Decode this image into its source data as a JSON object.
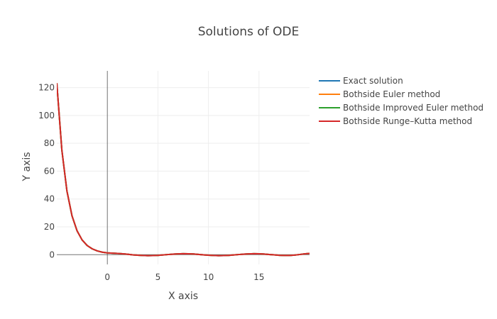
{
  "chart_data": {
    "type": "line",
    "title": "Solutions of ODE",
    "xlabel": "X axis",
    "ylabel": "Y axis",
    "xlim": [
      -5,
      20
    ],
    "ylim": [
      -7,
      132
    ],
    "x_ticks": [
      0,
      5,
      10,
      15
    ],
    "y_ticks": [
      0,
      20,
      40,
      60,
      80,
      100,
      120
    ],
    "grid": true,
    "legend_position": "right",
    "series": [
      {
        "name": "Exact solution",
        "color": "#1f77b4",
        "x": [
          -5,
          -4.5,
          -4,
          -3.5,
          -3,
          -2.5,
          -2,
          -1.5,
          -1,
          -0.5,
          0,
          0.5,
          1,
          1.5,
          2,
          2.5,
          3,
          3.5,
          4,
          4.5,
          5,
          5.5,
          6,
          6.5,
          7,
          7.5,
          8,
          8.5,
          9,
          9.5,
          10,
          10.5,
          11,
          11.5,
          12,
          12.5,
          13,
          13.5,
          14,
          14.5,
          15,
          15.5,
          16,
          16.5,
          17,
          17.5,
          18,
          18.5,
          19,
          19.5,
          20
        ],
        "y": [
          123.2,
          75.1,
          45.8,
          28.0,
          17.2,
          10.6,
          6.6,
          4.2,
          2.7,
          1.8,
          1.3,
          1.1,
          0.9,
          0.65,
          0.3,
          -0.1,
          -0.4,
          -0.6,
          -0.7,
          -0.65,
          -0.5,
          -0.2,
          0.1,
          0.4,
          0.6,
          0.7,
          0.65,
          0.5,
          0.2,
          -0.1,
          -0.4,
          -0.6,
          -0.7,
          -0.65,
          -0.5,
          -0.2,
          0.1,
          0.4,
          0.6,
          0.7,
          0.65,
          0.45,
          0.15,
          -0.15,
          -0.45,
          -0.6,
          -0.55,
          -0.3,
          0.1,
          0.6,
          0.9
        ]
      },
      {
        "name": "Bothside Euler method",
        "color": "#ff7f0e",
        "x": [
          -5,
          -4.5,
          -4,
          -3.5,
          -3,
          -2.5,
          -2,
          -1.5,
          -1,
          -0.5,
          0,
          0.5,
          1,
          1.5,
          2,
          2.5,
          3,
          3.5,
          4,
          4.5,
          5,
          5.5,
          6,
          6.5,
          7,
          7.5,
          8,
          8.5,
          9,
          9.5,
          10,
          10.5,
          11,
          11.5,
          12,
          12.5,
          13,
          13.5,
          14,
          14.5,
          15,
          15.5,
          16,
          16.5,
          17,
          17.5,
          18,
          18.5,
          19,
          19.5,
          20
        ],
        "y": [
          123.2,
          75.1,
          45.8,
          28.0,
          17.2,
          10.6,
          6.6,
          4.2,
          2.7,
          1.8,
          1.3,
          1.1,
          0.9,
          0.65,
          0.3,
          -0.1,
          -0.4,
          -0.6,
          -0.7,
          -0.65,
          -0.5,
          -0.2,
          0.1,
          0.4,
          0.6,
          0.7,
          0.65,
          0.5,
          0.2,
          -0.1,
          -0.4,
          -0.6,
          -0.7,
          -0.65,
          -0.5,
          -0.2,
          0.1,
          0.4,
          0.6,
          0.7,
          0.65,
          0.45,
          0.15,
          -0.15,
          -0.45,
          -0.6,
          -0.55,
          -0.3,
          0.1,
          0.6,
          0.9
        ]
      },
      {
        "name": "Bothside Improved Euler method",
        "color": "#2ca02c",
        "x": [
          -5,
          -4.5,
          -4,
          -3.5,
          -3,
          -2.5,
          -2,
          -1.5,
          -1,
          -0.5,
          0,
          0.5,
          1,
          1.5,
          2,
          2.5,
          3,
          3.5,
          4,
          4.5,
          5,
          5.5,
          6,
          6.5,
          7,
          7.5,
          8,
          8.5,
          9,
          9.5,
          10,
          10.5,
          11,
          11.5,
          12,
          12.5,
          13,
          13.5,
          14,
          14.5,
          15,
          15.5,
          16,
          16.5,
          17,
          17.5,
          18,
          18.5,
          19,
          19.5,
          20
        ],
        "y": [
          123.2,
          75.1,
          45.8,
          28.0,
          17.2,
          10.6,
          6.6,
          4.2,
          2.7,
          1.8,
          1.3,
          1.1,
          0.9,
          0.65,
          0.3,
          -0.1,
          -0.4,
          -0.6,
          -0.7,
          -0.65,
          -0.5,
          -0.2,
          0.1,
          0.4,
          0.6,
          0.7,
          0.65,
          0.5,
          0.2,
          -0.1,
          -0.4,
          -0.6,
          -0.7,
          -0.65,
          -0.5,
          -0.2,
          0.1,
          0.4,
          0.6,
          0.7,
          0.65,
          0.45,
          0.15,
          -0.15,
          -0.45,
          -0.6,
          -0.55,
          -0.3,
          0.1,
          0.6,
          0.9
        ]
      },
      {
        "name": "Bothside Runge–Kutta method",
        "color": "#d62728",
        "x": [
          -5,
          -4.5,
          -4,
          -3.5,
          -3,
          -2.5,
          -2,
          -1.5,
          -1,
          -0.5,
          0,
          0.5,
          1,
          1.5,
          2,
          2.5,
          3,
          3.5,
          4,
          4.5,
          5,
          5.5,
          6,
          6.5,
          7,
          7.5,
          8,
          8.5,
          9,
          9.5,
          10,
          10.5,
          11,
          11.5,
          12,
          12.5,
          13,
          13.5,
          14,
          14.5,
          15,
          15.5,
          16,
          16.5,
          17,
          17.5,
          18,
          18.5,
          19,
          19.5,
          20
        ],
        "y": [
          123.2,
          75.1,
          45.8,
          28.0,
          17.2,
          10.6,
          6.6,
          4.2,
          2.7,
          1.8,
          1.3,
          1.1,
          0.9,
          0.65,
          0.3,
          -0.1,
          -0.4,
          -0.6,
          -0.7,
          -0.65,
          -0.5,
          -0.2,
          0.1,
          0.4,
          0.6,
          0.7,
          0.65,
          0.5,
          0.2,
          -0.1,
          -0.4,
          -0.6,
          -0.7,
          -0.65,
          -0.5,
          -0.2,
          0.1,
          0.4,
          0.6,
          0.7,
          0.65,
          0.45,
          0.15,
          -0.15,
          -0.45,
          -0.6,
          -0.55,
          -0.3,
          0.1,
          0.6,
          0.9
        ]
      }
    ]
  }
}
